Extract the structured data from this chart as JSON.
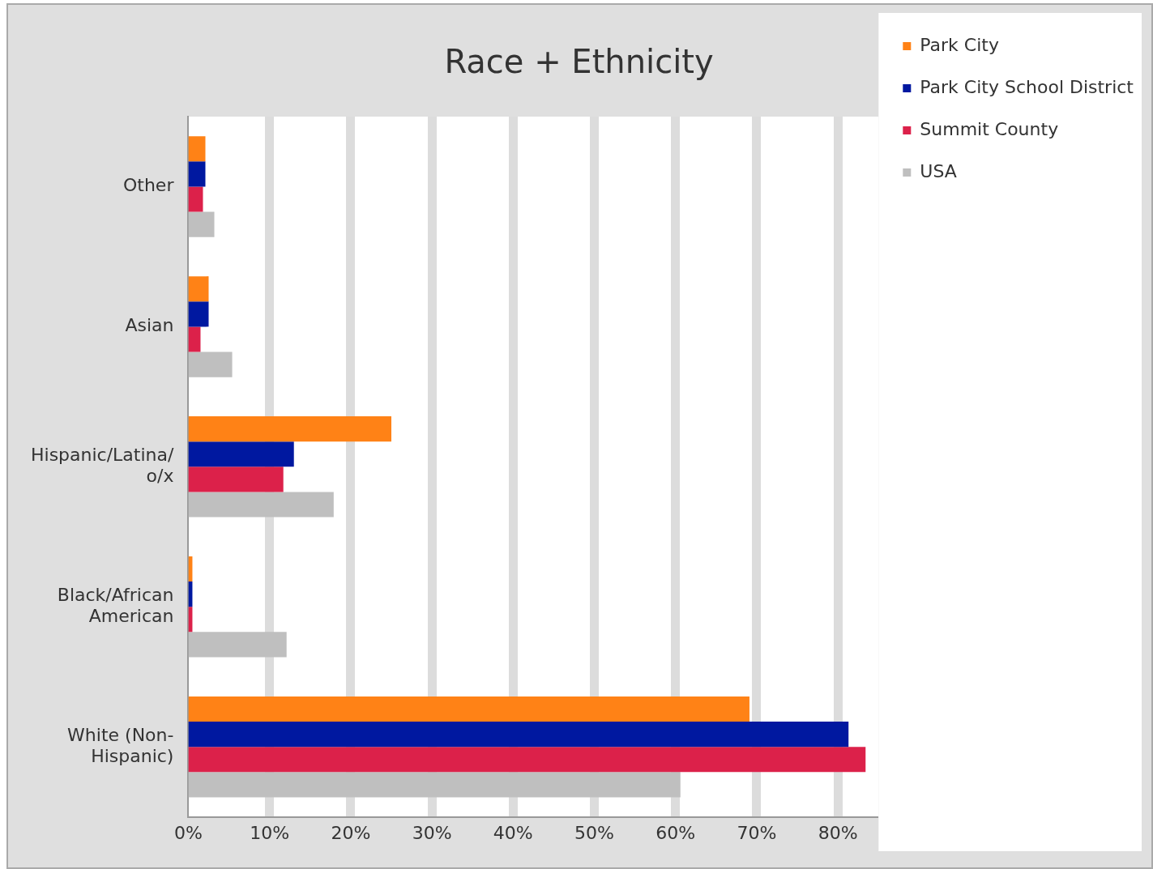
{
  "chart_data": {
    "type": "bar",
    "orientation": "horizontal",
    "title": "Race + Ethnicity",
    "categories": [
      "Other",
      "Asian",
      "Hispanic/Latina/o/x",
      "Black/African American",
      "White (Non-Hispanic)"
    ],
    "series": [
      {
        "name": "Park City",
        "color": "#ff8216",
        "values": [
          2.1,
          2.5,
          25.0,
          0.5,
          69.1
        ]
      },
      {
        "name": "Park City School District",
        "color": "#0018a0",
        "values": [
          2.1,
          2.5,
          13.0,
          0.5,
          81.3
        ]
      },
      {
        "name": "Summit County",
        "color": "#dc214a",
        "values": [
          1.8,
          1.5,
          11.7,
          0.5,
          83.4
        ]
      },
      {
        "name": "USA",
        "color": "#bfbfbf",
        "values": [
          3.2,
          5.4,
          17.9,
          12.1,
          60.6
        ]
      }
    ],
    "xlim": [
      0,
      85
    ],
    "xticks": [
      {
        "value": 0,
        "label": "0%"
      },
      {
        "value": 10,
        "label": "10%"
      },
      {
        "value": 20,
        "label": "20%"
      },
      {
        "value": 30,
        "label": "30%"
      },
      {
        "value": 40,
        "label": "40%"
      },
      {
        "value": 50,
        "label": "50%"
      },
      {
        "value": 60,
        "label": "60%"
      },
      {
        "value": 70,
        "label": "70%"
      },
      {
        "value": 80,
        "label": "80%"
      }
    ],
    "grid": "x",
    "legend": "top right"
  }
}
